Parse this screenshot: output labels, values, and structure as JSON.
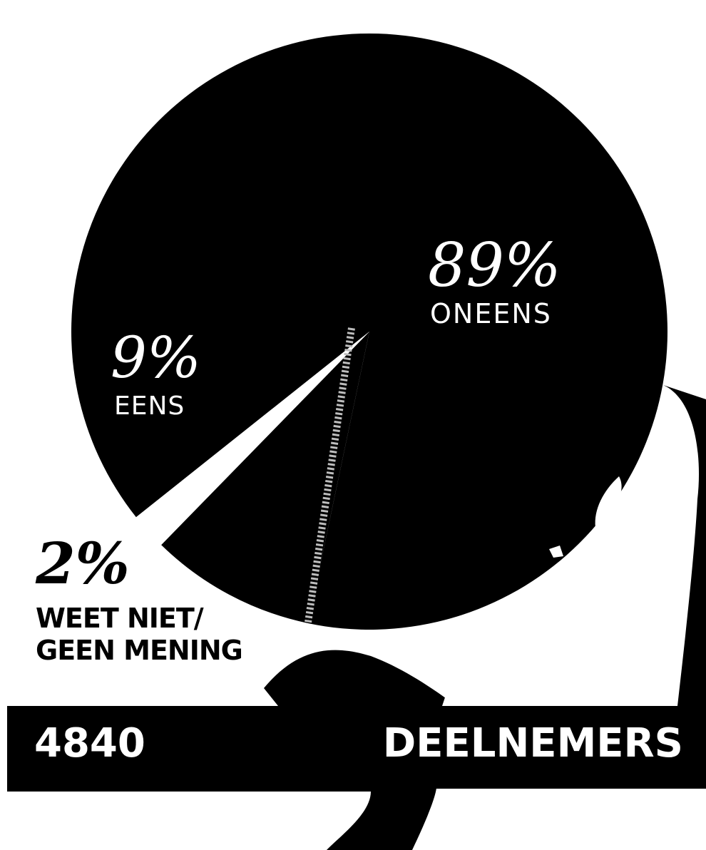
{
  "chart_data": {
    "type": "pie",
    "slices": [
      {
        "pct_label": "89%",
        "label": "ONEENS",
        "value": 89,
        "color": "#000000"
      },
      {
        "pct_label": "9%",
        "label": "EENS",
        "value": 9,
        "color": "#000000"
      },
      {
        "pct_label": "2%",
        "label": "WEET NIET/ GEEN MENING",
        "value": 2,
        "color": "#ffffff"
      }
    ],
    "total": {
      "count": "4840",
      "label": "DEELNEMERS"
    }
  }
}
